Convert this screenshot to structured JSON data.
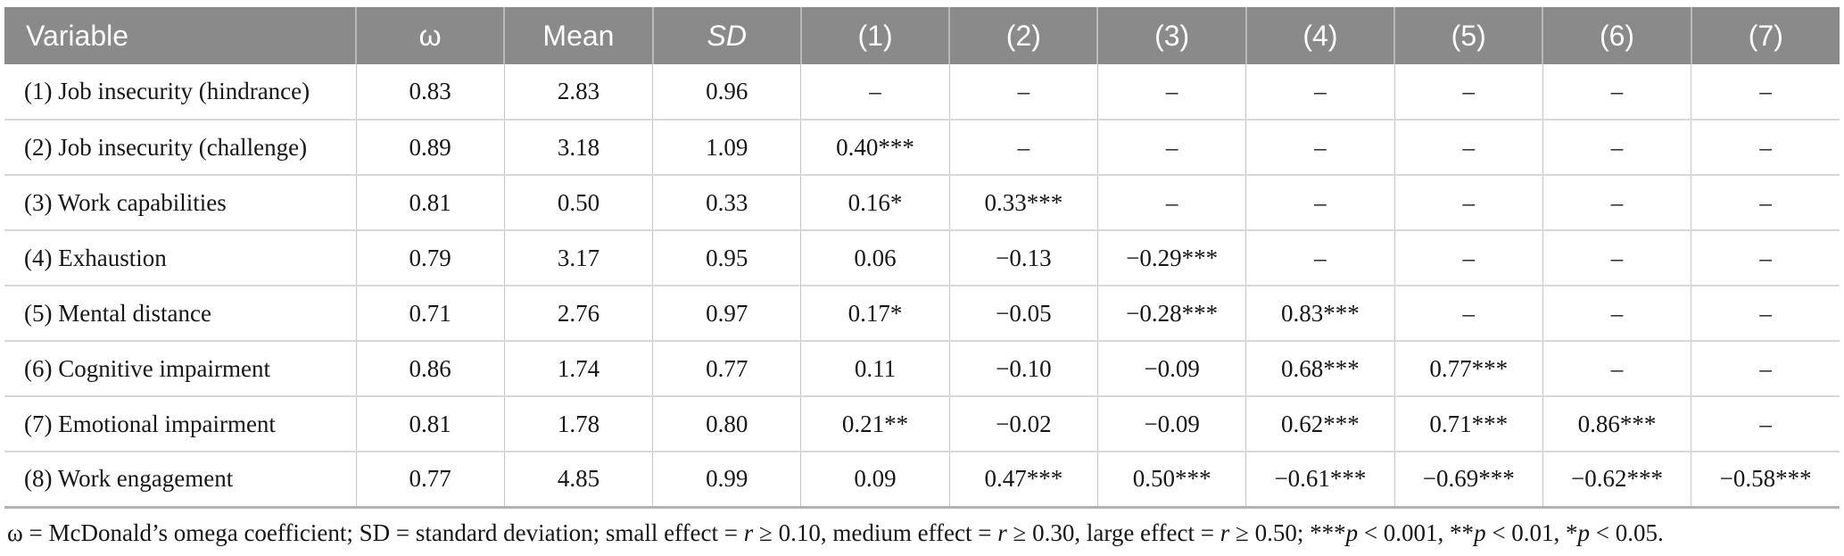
{
  "colors": {
    "header_bg": "#8a8a8a",
    "header_text": "#ffffff",
    "header_divider": "#b9b9b9",
    "grid_vertical": "#c6c6c6",
    "grid_horizontal": "#d8d8d8",
    "table_bottom_border": "#b3b3b3",
    "body_text": "#161616",
    "page_bg": "#ffffff"
  },
  "table": {
    "columns": [
      {
        "id": "variable",
        "label": "Variable",
        "align": "left",
        "italic": false
      },
      {
        "id": "omega",
        "label": "ω",
        "align": "center",
        "italic": false
      },
      {
        "id": "mean",
        "label": "Mean",
        "align": "center",
        "italic": false
      },
      {
        "id": "sd",
        "label": "SD",
        "align": "center",
        "italic": true
      },
      {
        "id": "c1",
        "label": "(1)",
        "align": "center",
        "italic": false
      },
      {
        "id": "c2",
        "label": "(2)",
        "align": "center",
        "italic": false
      },
      {
        "id": "c3",
        "label": "(3)",
        "align": "center",
        "italic": false
      },
      {
        "id": "c4",
        "label": "(4)",
        "align": "center",
        "italic": false
      },
      {
        "id": "c5",
        "label": "(5)",
        "align": "center",
        "italic": false
      },
      {
        "id": "c6",
        "label": "(6)",
        "align": "center",
        "italic": false
      },
      {
        "id": "c7",
        "label": "(7)",
        "align": "center",
        "italic": false
      }
    ],
    "empty_cell_glyph": "–",
    "rows": [
      {
        "variable": "(1) Job insecurity (hindrance)",
        "cells": [
          "0.83",
          "2.83",
          "0.96",
          "–",
          "–",
          "–",
          "–",
          "–",
          "–",
          "–"
        ]
      },
      {
        "variable": "(2) Job insecurity (challenge)",
        "cells": [
          "0.89",
          "3.18",
          "1.09",
          "0.40***",
          "–",
          "–",
          "–",
          "–",
          "–",
          "–"
        ]
      },
      {
        "variable": "(3) Work capabilities",
        "cells": [
          "0.81",
          "0.50",
          "0.33",
          "0.16*",
          "0.33***",
          "–",
          "–",
          "–",
          "–",
          "–"
        ]
      },
      {
        "variable": "(4) Exhaustion",
        "cells": [
          "0.79",
          "3.17",
          "0.95",
          "0.06",
          "−0.13",
          "−0.29***",
          "–",
          "–",
          "–",
          "–"
        ]
      },
      {
        "variable": "(5) Mental distance",
        "cells": [
          "0.71",
          "2.76",
          "0.97",
          "0.17*",
          "−0.05",
          "−0.28***",
          "0.83***",
          "–",
          "–",
          "–"
        ]
      },
      {
        "variable": "(6) Cognitive impairment",
        "cells": [
          "0.86",
          "1.74",
          "0.77",
          "0.11",
          "−0.10",
          "−0.09",
          "0.68***",
          "0.77***",
          "–",
          "–"
        ]
      },
      {
        "variable": "(7) Emotional impairment",
        "cells": [
          "0.81",
          "1.78",
          "0.80",
          "0.21**",
          "−0.02",
          "−0.09",
          "0.62***",
          "0.71***",
          "0.86***",
          "–"
        ]
      },
      {
        "variable": "(8) Work engagement",
        "cells": [
          "0.77",
          "4.85",
          "0.99",
          "0.09",
          "0.47***",
          "0.50***",
          "−0.61***",
          "−0.69***",
          "−0.62***",
          "−0.58***"
        ]
      }
    ]
  },
  "footnote": {
    "segments": [
      {
        "t": "ω = McDonald’s omega coefficient; SD = standard deviation; small effect = "
      },
      {
        "t": "r",
        "i": true
      },
      {
        "t": " ≥ 0.10, medium effect = "
      },
      {
        "t": "r",
        "i": true
      },
      {
        "t": " ≥ 0.30, large effect = "
      },
      {
        "t": "r",
        "i": true
      },
      {
        "t": " ≥ 0.50; ***"
      },
      {
        "t": "p",
        "i": true
      },
      {
        "t": " < 0.001, **"
      },
      {
        "t": "p",
        "i": true
      },
      {
        "t": " < 0.01, *"
      },
      {
        "t": "p",
        "i": true
      },
      {
        "t": " < 0.05."
      }
    ]
  }
}
